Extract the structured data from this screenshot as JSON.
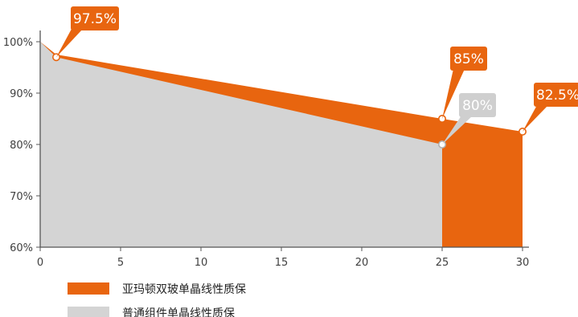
{
  "colors": {
    "orange": "#E8650F",
    "gray": "#D4D4D4",
    "axis": "#555555"
  },
  "chart_data": {
    "type": "area",
    "x_ticks": [
      0,
      5,
      10,
      15,
      20,
      25,
      30
    ],
    "y_ticks": [
      "60%",
      "70%",
      "80%",
      "90%",
      "100%"
    ],
    "xlim": [
      0,
      30
    ],
    "ylim": [
      60,
      100
    ],
    "series": [
      {
        "name": "亚玛顿双玻单晶线性质保",
        "color": "#E8650F",
        "points": [
          [
            0,
            100
          ],
          [
            1,
            97.5
          ],
          [
            25,
            85
          ],
          [
            30,
            82.5
          ]
        ]
      },
      {
        "name": "普通组件单晶线性质保",
        "color": "#D4D4D4",
        "points": [
          [
            0,
            100
          ],
          [
            1,
            97
          ],
          [
            25,
            80
          ]
        ]
      }
    ],
    "annotations": [
      {
        "label": "97.5%",
        "x": 1,
        "y": 97,
        "style": "orange"
      },
      {
        "label": "85%",
        "x": 25,
        "y": 85,
        "style": "orange"
      },
      {
        "label": "80%",
        "x": 25,
        "y": 80,
        "style": "gray"
      },
      {
        "label": "82.5%",
        "x": 30,
        "y": 82.5,
        "style": "orange"
      }
    ],
    "legend": [
      {
        "label": "亚玛顿双玻单晶线性质保",
        "color": "#E8650F"
      },
      {
        "label": "普通组件单晶线性质保",
        "color": "#D4D4D4"
      }
    ],
    "legend_position": "bottom-left"
  }
}
